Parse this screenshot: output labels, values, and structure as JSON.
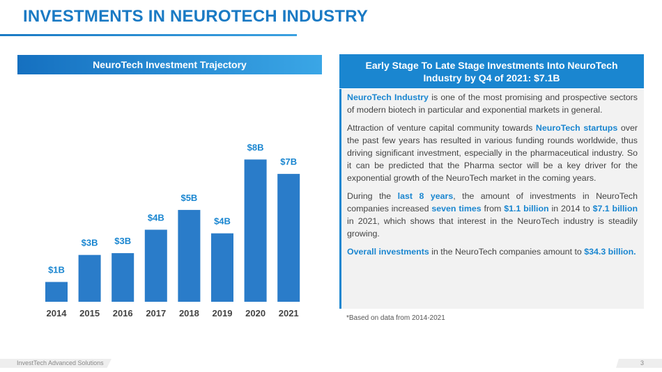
{
  "title": "INVESTMENTS IN NEUROTECH INDUSTRY",
  "chart_data": {
    "type": "bar",
    "title": "NeuroTech Investment Trajectory",
    "categories": [
      "2014",
      "2015",
      "2016",
      "2017",
      "2018",
      "2019",
      "2020",
      "2021"
    ],
    "values": [
      1.1,
      2.6,
      2.7,
      4.0,
      5.1,
      3.8,
      7.9,
      7.1
    ],
    "value_labels": [
      "$1B",
      "$3B",
      "$3B",
      "$4B",
      "$5B",
      "$4B",
      "$8B",
      "$7B"
    ],
    "color": "#2a7cc9"
  },
  "panel": {
    "title": "Early Stage To Late Stage Investments Into NeuroTech Industry by Q4 of 2021: $7.1B",
    "paragraphs": [
      [
        {
          "text": "NeuroTech Industry",
          "strong": true
        },
        {
          "text": " is one of the most promising and prospective sectors of modern biotech in particular and exponential markets in general.",
          "strong": false
        }
      ],
      [
        {
          "text": "Attraction of venture capital community towards ",
          "strong": false
        },
        {
          "text": "NeuroTech startups",
          "strong": true
        },
        {
          "text": " over the past few years has resulted in various funding rounds worldwide, thus driving significant investment, especially in the pharmaceutical industry. So it can be predicted that the Pharma sector will be a key driver for the exponential growth of the NeuroTech market in the coming years.",
          "strong": false
        }
      ],
      [
        {
          "text": "During the ",
          "strong": false
        },
        {
          "text": "last 8 years",
          "strong": true
        },
        {
          "text": ", the amount of investments in NeuroTech companies increased ",
          "strong": false
        },
        {
          "text": "seven times",
          "strong": true
        },
        {
          "text": " from ",
          "strong": false
        },
        {
          "text": "$1.1 billion",
          "strong": true
        },
        {
          "text": " in 2014 to ",
          "strong": false
        },
        {
          "text": "$7.1 billion",
          "strong": true
        },
        {
          "text": " in 2021, which shows that interest in the NeuroTech industry is steadily growing.",
          "strong": false
        }
      ],
      [
        {
          "text": "Overall investments",
          "strong": true
        },
        {
          "text": " in the NeuroTech companies amount to ",
          "strong": false
        },
        {
          "text": "$34.3 billion.",
          "strong": true
        }
      ]
    ],
    "footnote": "*Based on data from 2014-2021"
  },
  "footer": {
    "company": "InvestTech Advanced Solutions",
    "page": "3"
  }
}
